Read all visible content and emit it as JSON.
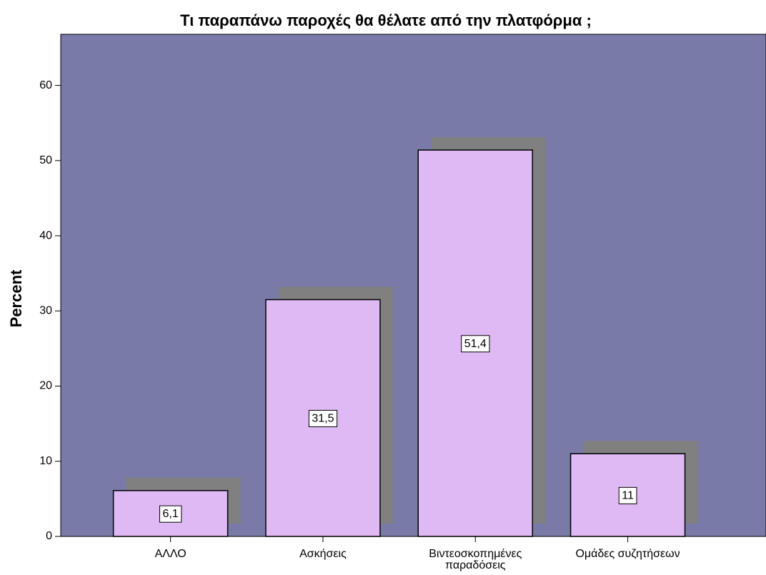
{
  "chart_data": {
    "type": "bar",
    "title": "Τι παραπάνω παροχές θα θέλατε από την πλατφόρμα ;",
    "y_label": "Percent",
    "categories": [
      "ΑΛΛΟ",
      "Ασκήσεις",
      "Βιντεοσκοπημένες παραδόσεις",
      "Ομάδες συζητήσεων"
    ],
    "values": [
      6.1,
      31.5,
      51.4,
      11
    ],
    "value_labels": [
      "6,1",
      "31,5",
      "51,4",
      "11"
    ],
    "color": "#deb9f4",
    "ylim": [
      0,
      66.8
    ],
    "yticks": [
      0,
      10,
      20,
      30,
      40,
      50,
      60
    ]
  }
}
